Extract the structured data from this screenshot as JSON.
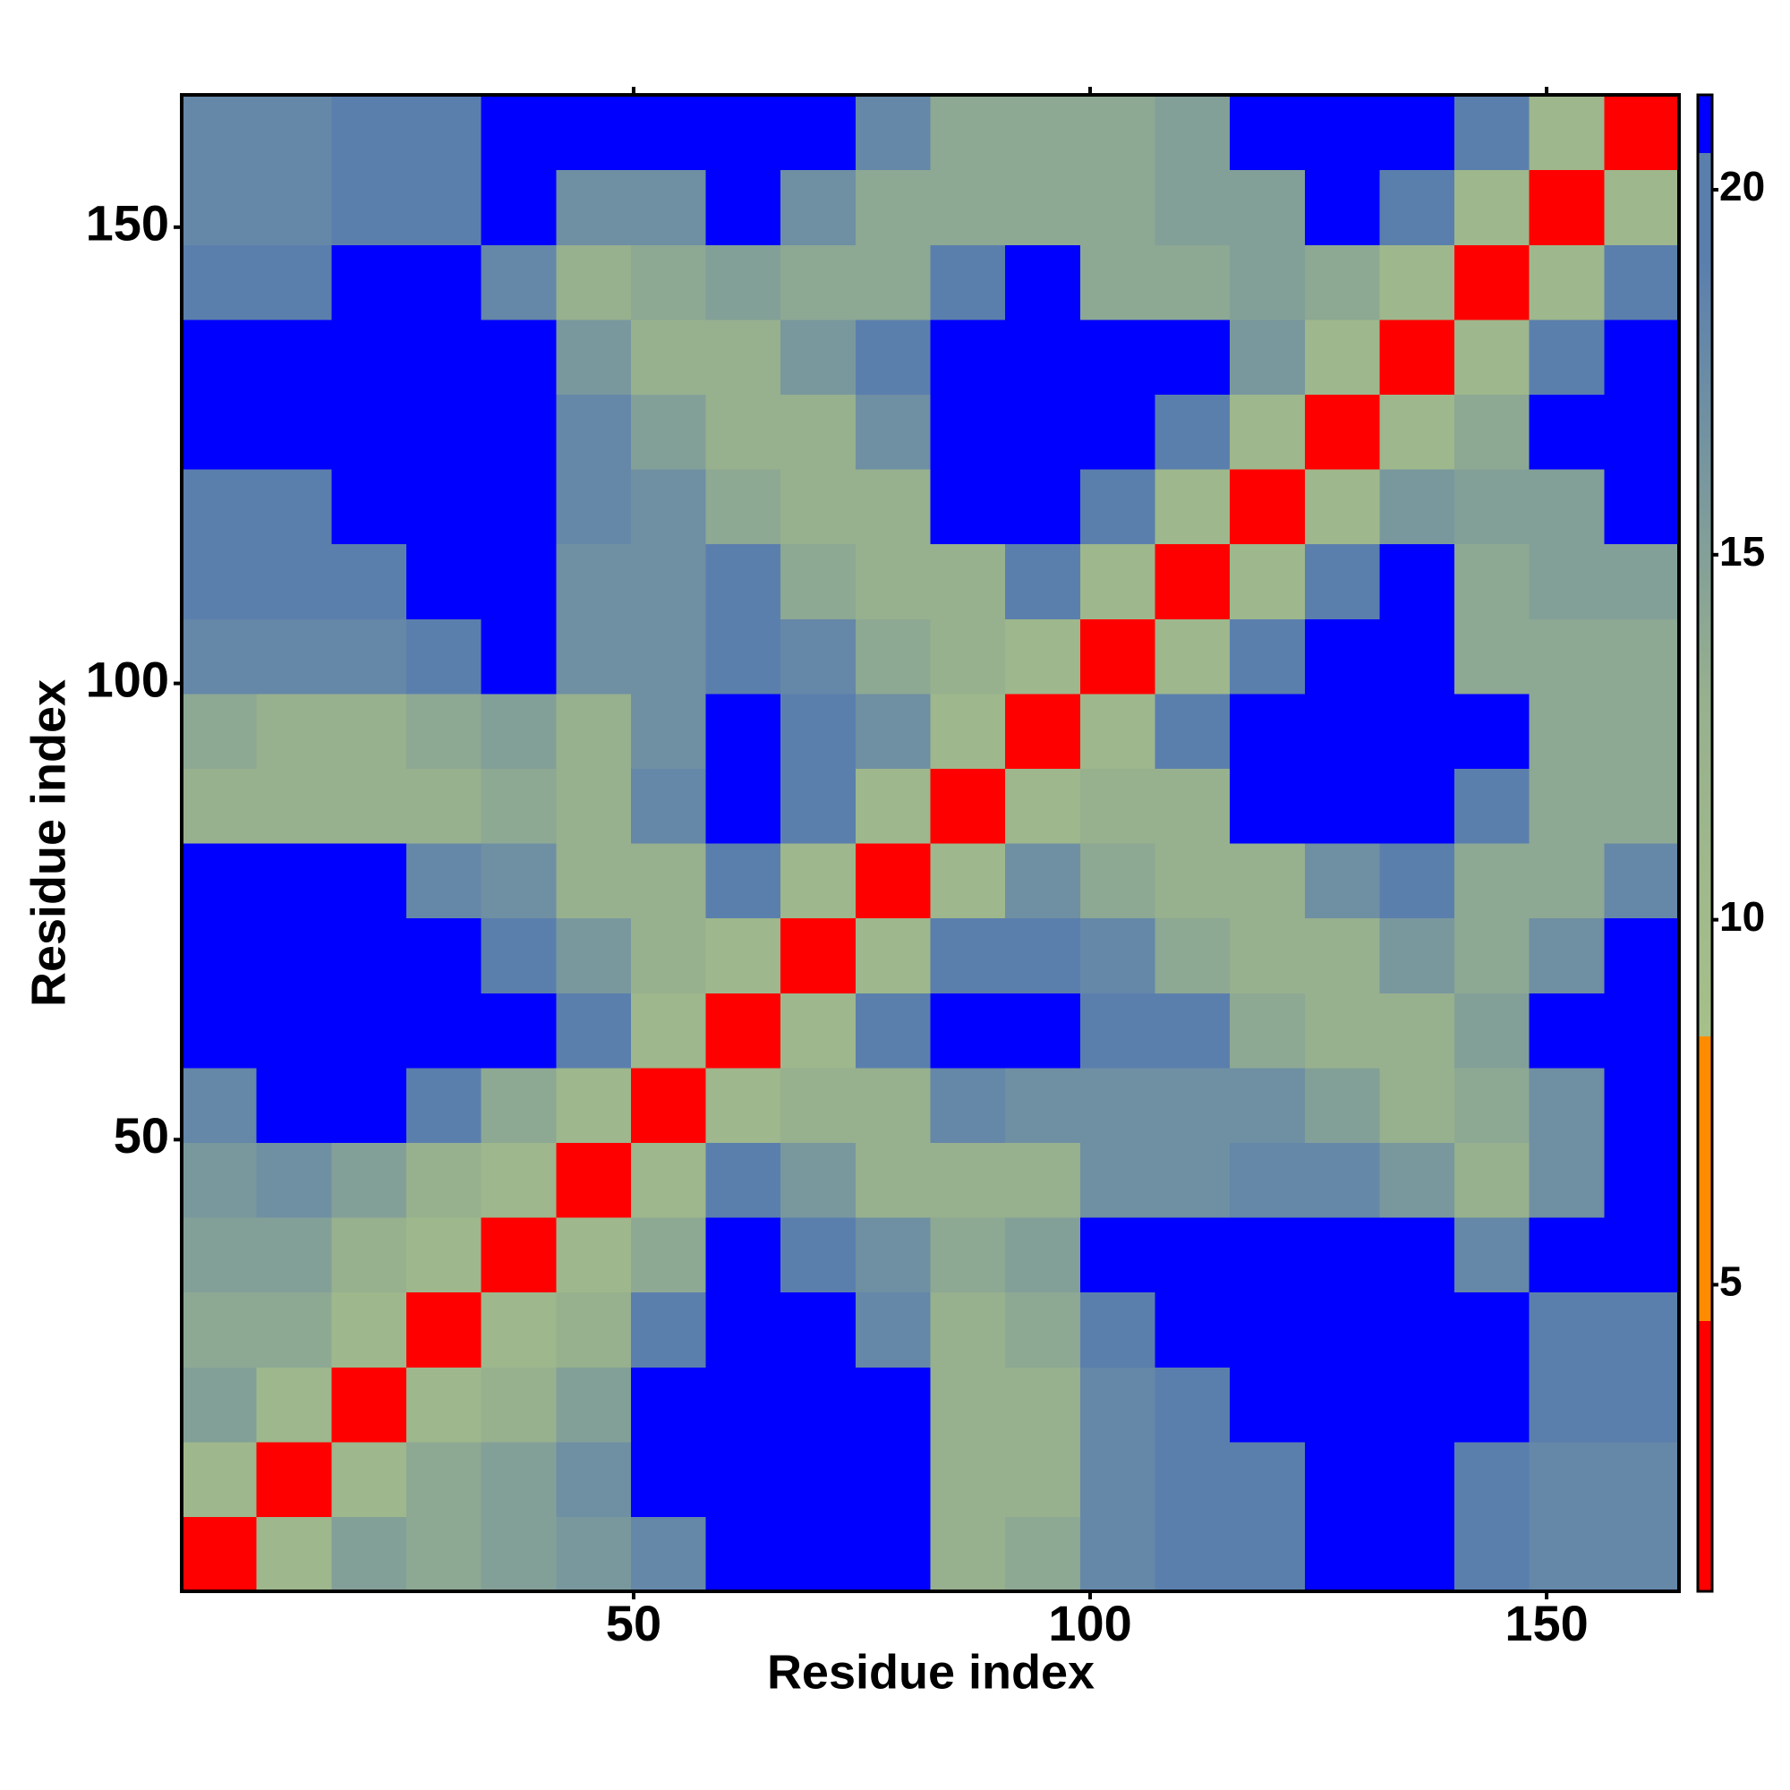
{
  "chart_data": {
    "type": "heatmap",
    "xlabel": "Residue index",
    "ylabel": "Residue index",
    "xlim": [
      0.5,
      164.5
    ],
    "ylim": [
      0.5,
      164.5
    ],
    "xticks": [
      50,
      100,
      150
    ],
    "yticks": [
      50,
      100,
      150
    ],
    "x_edges": [
      0.5,
      8.7,
      16.9,
      25.1,
      33.3,
      41.5,
      49.7,
      57.9,
      66.1,
      74.3,
      82.5,
      90.7,
      98.9,
      107.1,
      115.3,
      123.5,
      131.7,
      139.9,
      148.1,
      156.3,
      164.5
    ],
    "y_edges": [
      0.5,
      8.7,
      16.9,
      25.1,
      33.3,
      41.5,
      49.7,
      57.9,
      66.1,
      74.3,
      82.5,
      90.7,
      98.9,
      107.1,
      115.3,
      123.5,
      131.7,
      139.9,
      148.1,
      156.3,
      164.5
    ],
    "z": [
      [
        3,
        11,
        15,
        14,
        15,
        16,
        18,
        21,
        21,
        21,
        13,
        14,
        18,
        19,
        20,
        21,
        21,
        19,
        18,
        18
      ],
      [
        11,
        3,
        11,
        14,
        15,
        17,
        21,
        21,
        21,
        21,
        13,
        13,
        18,
        19,
        20,
        21,
        21,
        20,
        18,
        18
      ],
      [
        15,
        11,
        3,
        11,
        13,
        15,
        21,
        21,
        21,
        21,
        13,
        13,
        18,
        20,
        21,
        21,
        21,
        21,
        19,
        19
      ],
      [
        14,
        14,
        11,
        3,
        11,
        13,
        20,
        21,
        21,
        18,
        13,
        14,
        19,
        21,
        21,
        21,
        21,
        21,
        19,
        20
      ],
      [
        15,
        15,
        13,
        11,
        3,
        11,
        14,
        21,
        20,
        17,
        14,
        15,
        21,
        21,
        21,
        21,
        21,
        18,
        21,
        21
      ],
      [
        16,
        17,
        15,
        13,
        11,
        3,
        11,
        19,
        16,
        13,
        13,
        13,
        17,
        17,
        18,
        18,
        16,
        13,
        17,
        21
      ],
      [
        18,
        21,
        21,
        20,
        14,
        11,
        3,
        11,
        13,
        13,
        18,
        17,
        17,
        17,
        17,
        15,
        13,
        14,
        17,
        21
      ],
      [
        21,
        21,
        21,
        21,
        21,
        19,
        11,
        3,
        11,
        19,
        21,
        21,
        20,
        19,
        14,
        13,
        13,
        15,
        21,
        21
      ],
      [
        21,
        21,
        21,
        21,
        20,
        16,
        13,
        11,
        3,
        11,
        19,
        20,
        18,
        14,
        13,
        13,
        16,
        14,
        17,
        21
      ],
      [
        21,
        21,
        21,
        18,
        17,
        13,
        13,
        19,
        11,
        3,
        11,
        17,
        14,
        13,
        13,
        17,
        19,
        14,
        14,
        18
      ],
      [
        13,
        13,
        13,
        13,
        14,
        13,
        18,
        21,
        19,
        11,
        3,
        11,
        13,
        13,
        21,
        21,
        21,
        19,
        14,
        14
      ],
      [
        14,
        13,
        13,
        14,
        15,
        13,
        17,
        21,
        20,
        17,
        11,
        3,
        11,
        19,
        21,
        21,
        21,
        21,
        14,
        14
      ],
      [
        18,
        18,
        18,
        19,
        21,
        17,
        17,
        20,
        18,
        14,
        13,
        11,
        3,
        11,
        19,
        21,
        21,
        14,
        14,
        14
      ],
      [
        19,
        19,
        20,
        21,
        21,
        17,
        17,
        19,
        14,
        13,
        13,
        19,
        11,
        3,
        11,
        19,
        21,
        14,
        15,
        15
      ],
      [
        20,
        20,
        21,
        21,
        21,
        18,
        17,
        14,
        13,
        13,
        21,
        21,
        19,
        11,
        3,
        11,
        16,
        15,
        15,
        21
      ],
      [
        21,
        21,
        21,
        21,
        21,
        18,
        15,
        13,
        13,
        17,
        21,
        21,
        21,
        19,
        11,
        3,
        11,
        14,
        21,
        21
      ],
      [
        21,
        21,
        21,
        21,
        21,
        16,
        13,
        13,
        16,
        19,
        21,
        21,
        21,
        21,
        16,
        11,
        3,
        11,
        19,
        21
      ],
      [
        19,
        20,
        21,
        21,
        18,
        13,
        14,
        15,
        14,
        14,
        19,
        21,
        14,
        14,
        15,
        14,
        11,
        3,
        11,
        19
      ],
      [
        18,
        18,
        19,
        19,
        21,
        17,
        17,
        21,
        17,
        14,
        14,
        14,
        14,
        15,
        15,
        21,
        19,
        11,
        3,
        11
      ],
      [
        18,
        18,
        19,
        20,
        21,
        21,
        21,
        21,
        21,
        18,
        14,
        14,
        14,
        15,
        21,
        21,
        21,
        19,
        11,
        3
      ]
    ],
    "zlim": [
      0.8,
      21.3
    ],
    "zticks": [
      5,
      10,
      15,
      20
    ],
    "colorscale": [
      [
        0.8,
        "#ff0000"
      ],
      [
        4.5,
        "#ff0000"
      ],
      [
        4.5,
        "#ff8c00"
      ],
      [
        8.4,
        "#ff8c00"
      ],
      [
        8.4,
        "#a6c08a"
      ],
      [
        13,
        "#97b08e"
      ],
      [
        19,
        "#5b7fad"
      ],
      [
        20.5,
        "#5b7fad"
      ],
      [
        20.5,
        "#0000ff"
      ],
      [
        21.3,
        "#0000ff"
      ]
    ]
  }
}
